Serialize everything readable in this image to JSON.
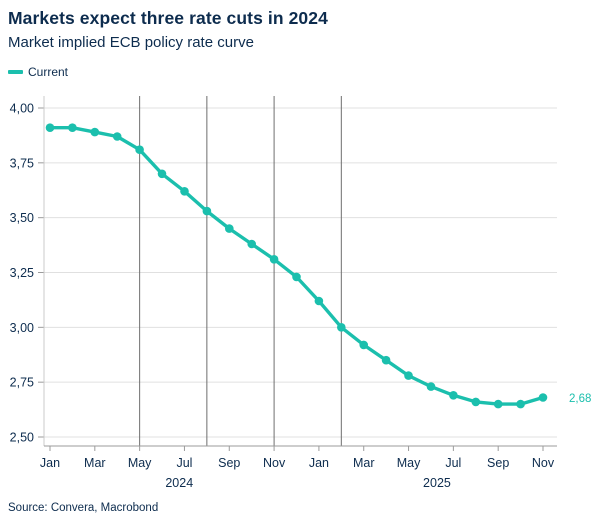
{
  "header": {
    "title": "Markets expect three rate cuts in 2024",
    "subtitle": "Market implied ECB policy rate curve"
  },
  "legend": {
    "items": [
      {
        "label": "Current",
        "color": "#1BBFAD"
      }
    ]
  },
  "source": "Source: Convera, Macrobond",
  "colors": {
    "accent": "#1BBFAD",
    "navy": "#0D2C4E",
    "grid": "#E0E0E0",
    "axis": "#9B9B9B",
    "yaxis_line": "#CBCBCB",
    "refline": "#6E6E6E"
  },
  "chart_data": {
    "type": "line",
    "title": "Markets expect three rate cuts in 2024",
    "subtitle": "Market implied ECB policy rate curve",
    "categories": [
      "Jan 2024",
      "Feb 2024",
      "Mar 2024",
      "Apr 2024",
      "May 2024",
      "Jun 2024",
      "Jul 2024",
      "Aug 2024",
      "Sep 2024",
      "Oct 2024",
      "Nov 2024",
      "Dec 2024",
      "Jan 2025",
      "Feb 2025",
      "Mar 2025",
      "Apr 2025",
      "May 2025",
      "Jun 2025",
      "Jul 2025",
      "Aug 2025",
      "Sep 2025",
      "Oct 2025",
      "Nov 2025"
    ],
    "series": [
      {
        "name": "Current",
        "color": "#1BBFAD",
        "values": [
          3.91,
          3.91,
          3.89,
          3.87,
          3.81,
          3.7,
          3.62,
          3.53,
          3.45,
          3.38,
          3.31,
          3.23,
          3.12,
          3.0,
          2.92,
          2.85,
          2.78,
          2.73,
          2.69,
          2.66,
          2.65,
          2.65,
          2.68
        ]
      }
    ],
    "ylim": [
      2.5,
      4.0
    ],
    "ytick_step": 0.25,
    "ytick_labels": [
      "4,00",
      "3,75",
      "3,50",
      "3,25",
      "3,00",
      "2,75",
      "2,50"
    ],
    "xtick_every": 2,
    "xtick_labels": [
      "Jan",
      "Mar",
      "May",
      "Jul",
      "Sep",
      "Nov",
      "Jan",
      "Mar",
      "May",
      "Jul",
      "Sep",
      "Nov"
    ],
    "year_labels": [
      {
        "label": "2024",
        "from_index": 0,
        "to_index": 11
      },
      {
        "label": "2025",
        "from_index": 12,
        "to_index": 22
      }
    ],
    "ref_vline_indices": [
      4,
      7,
      10,
      13
    ],
    "end_label": "2,68",
    "grid": "horizontal",
    "legend_position": "top-left",
    "decimal_format": "comma"
  }
}
